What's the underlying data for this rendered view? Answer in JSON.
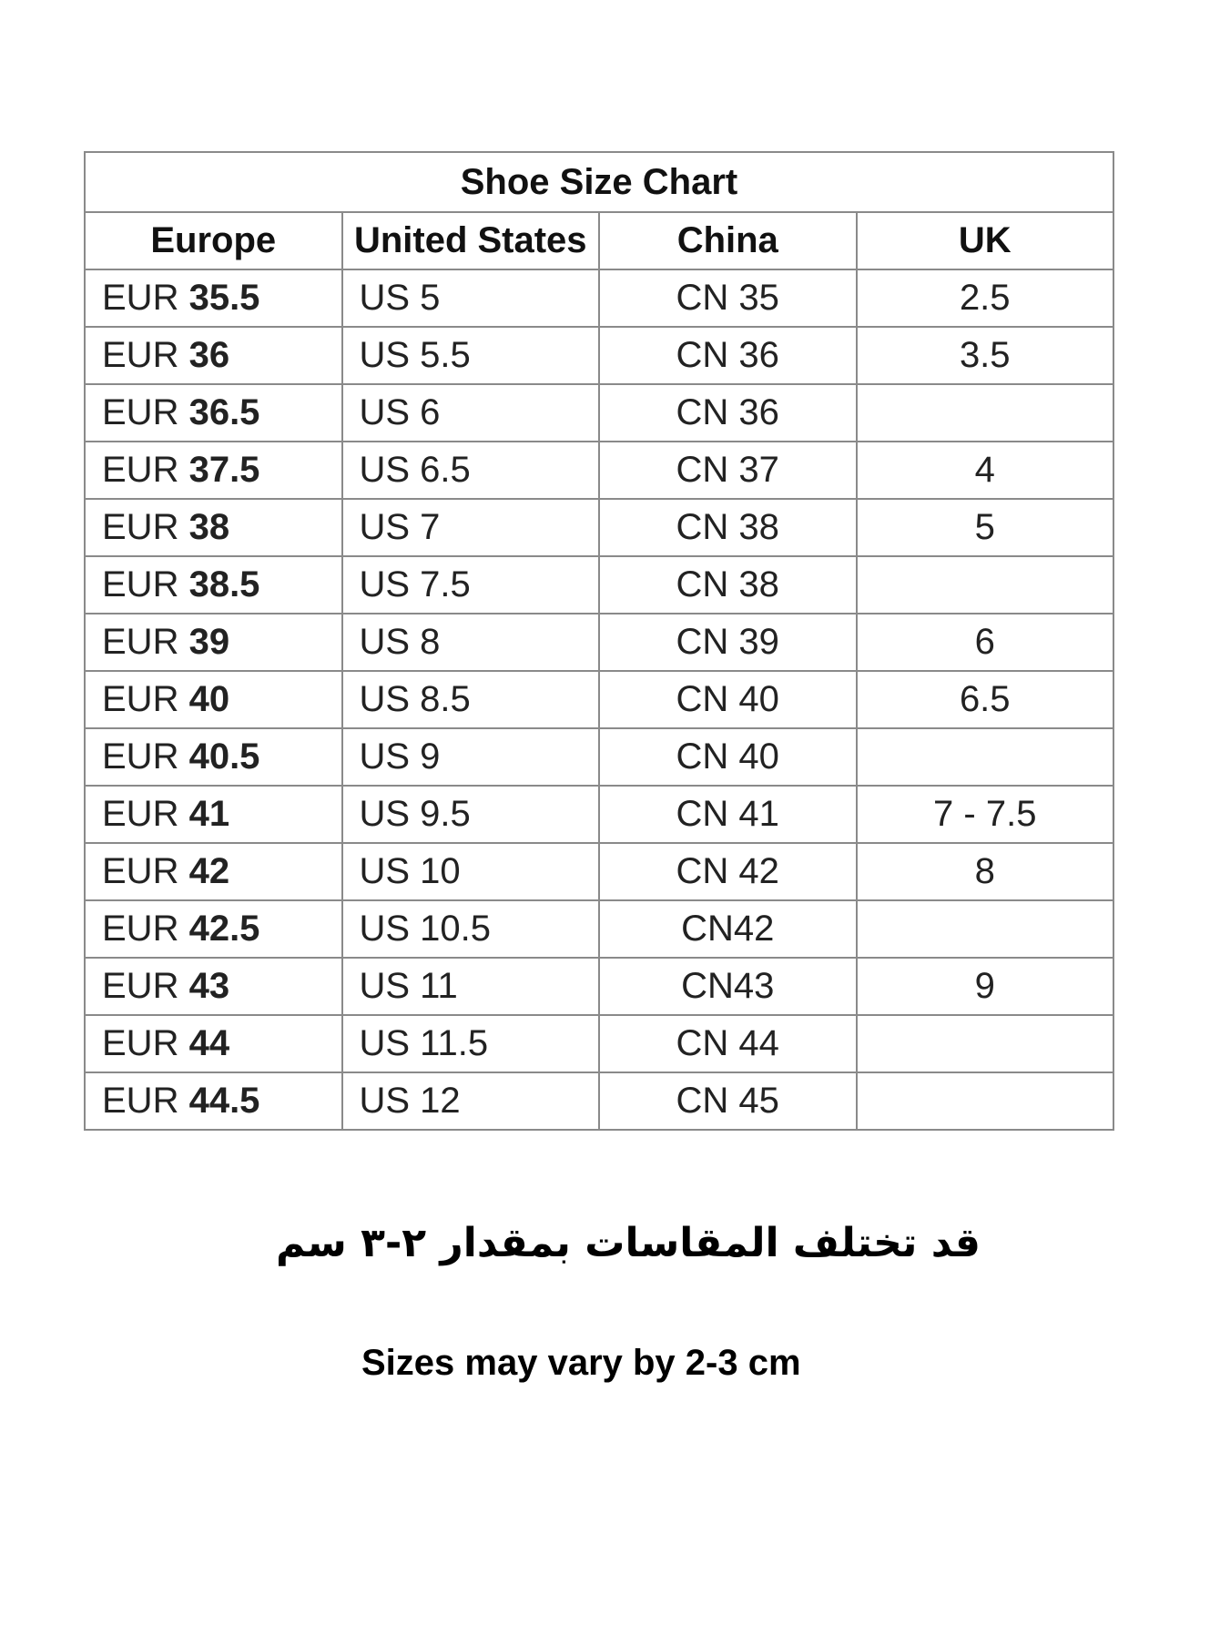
{
  "table": {
    "title": "Shoe Size Chart",
    "headers": [
      "Europe",
      "United States",
      "China",
      "UK"
    ],
    "rows": [
      {
        "eu_prefix": "EUR",
        "eu": "35.5",
        "us": "US 5",
        "cn": "CN 35",
        "uk": "2.5"
      },
      {
        "eu_prefix": "EUR",
        "eu": "36",
        "us": "US 5.5",
        "cn": "CN 36",
        "uk": "3.5"
      },
      {
        "eu_prefix": "EUR",
        "eu": "36.5",
        "us": "US 6",
        "cn": "CN 36",
        "uk": ""
      },
      {
        "eu_prefix": "EUR",
        "eu": "37.5",
        "us": "US 6.5",
        "cn": "CN 37",
        "uk": "4"
      },
      {
        "eu_prefix": "EUR",
        "eu": "38",
        "us": "US 7",
        "cn": "CN 38",
        "uk": "5"
      },
      {
        "eu_prefix": "EUR",
        "eu": "38.5",
        "us": "US 7.5",
        "cn": "CN 38",
        "uk": ""
      },
      {
        "eu_prefix": "EUR",
        "eu": "39",
        "us": "US 8",
        "cn": "CN 39",
        "uk": "6"
      },
      {
        "eu_prefix": "EUR",
        "eu": "40",
        "us": "US 8.5",
        "cn": "CN 40",
        "uk": "6.5"
      },
      {
        "eu_prefix": "EUR",
        "eu": "40.5",
        "us": "US 9",
        "cn": "CN 40",
        "uk": ""
      },
      {
        "eu_prefix": "EUR",
        "eu": "41",
        "us": "US 9.5",
        "cn": "CN 41",
        "uk": "7 - 7.5"
      },
      {
        "eu_prefix": "EUR",
        "eu": "42",
        "us": "US 10",
        "cn": "CN 42",
        "uk": "8"
      },
      {
        "eu_prefix": "EUR",
        "eu": "42.5",
        "us": "US 10.5",
        "cn": "CN42",
        "uk": ""
      },
      {
        "eu_prefix": "EUR",
        "eu": "43",
        "us": "US 11",
        "cn": "CN43",
        "uk": "9"
      },
      {
        "eu_prefix": "EUR",
        "eu": "44",
        "us": "US 11.5",
        "cn": "CN 44",
        "uk": ""
      },
      {
        "eu_prefix": "EUR",
        "eu": "44.5",
        "us": "US 12",
        "cn": "CN 45",
        "uk": ""
      }
    ]
  },
  "notes": {
    "arabic": "قد تختلف المقاسات بمقدار ٢-٣ سم",
    "english": "Sizes may vary by 2-3 cm"
  }
}
